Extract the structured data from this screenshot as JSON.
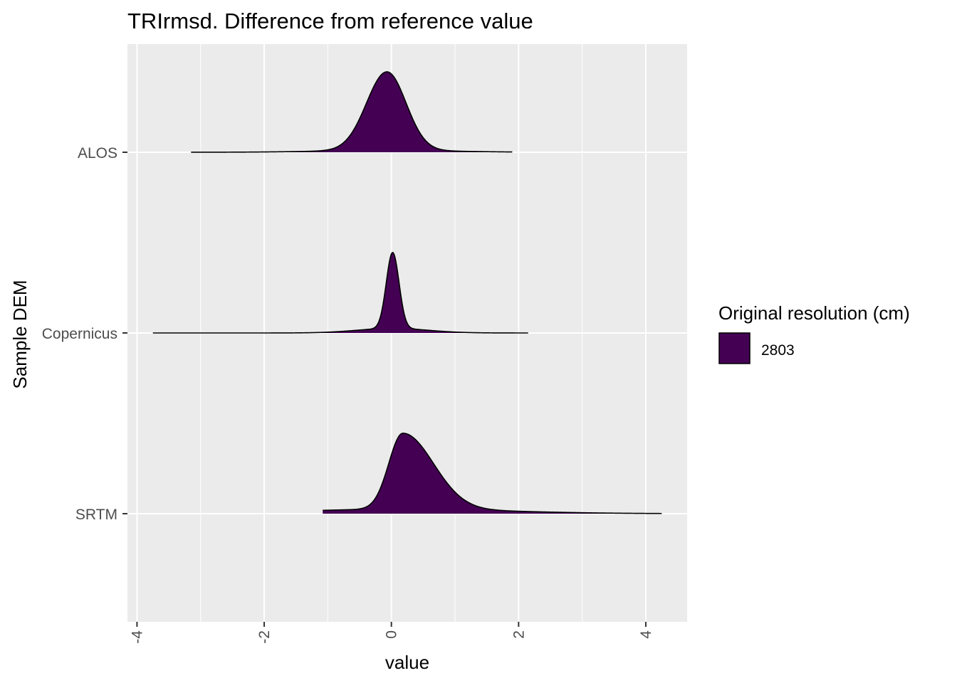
{
  "chart_data": {
    "type": "ridgeline",
    "title": "TRIrmsd. Difference from reference value",
    "xlabel": "value",
    "ylabel": "Sample DEM",
    "xlim": [
      -4.15,
      4.65
    ],
    "x_ticks": [
      -4,
      -2,
      0,
      2,
      4
    ],
    "x_tick_labels": [
      "-4",
      "-2",
      "0",
      "2",
      "4"
    ],
    "grid": true,
    "legend": {
      "title": "Original resolution (cm)",
      "position": "right",
      "entries": [
        {
          "label": "2803",
          "color": "#440154"
        }
      ]
    },
    "categories": [
      "ALOS",
      "Copernicus",
      "SRTM"
    ],
    "series": [
      {
        "name": "ALOS",
        "color": "#440154",
        "range": [
          -3.15,
          1.9
        ],
        "peak": -0.07,
        "sd_left": 0.32,
        "sd_right": 0.3,
        "tail_weight": 0.025,
        "tail_sd": 1.0
      },
      {
        "name": "Copernicus",
        "color": "#440154",
        "range": [
          -3.75,
          2.15
        ],
        "peak": 0.02,
        "sd_left": 0.1,
        "sd_right": 0.1,
        "tail_weight": 0.06,
        "tail_sd": 0.55
      },
      {
        "name": "SRTM",
        "color": "#440154",
        "range": [
          -1.08,
          4.25
        ],
        "peak": 0.18,
        "sd_left": 0.22,
        "sd_right": 0.48,
        "tail_weight": 0.06,
        "tail_sd": 1.6
      }
    ]
  }
}
